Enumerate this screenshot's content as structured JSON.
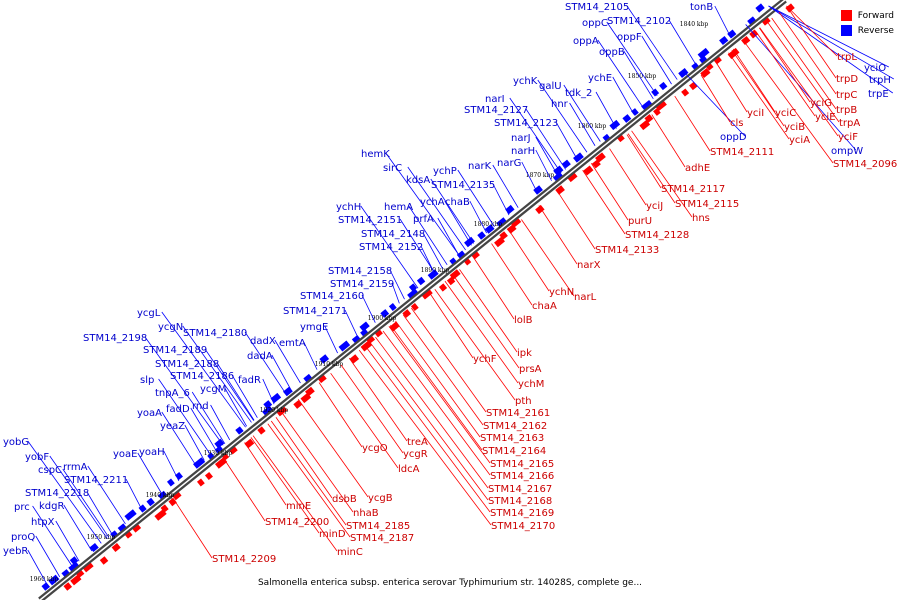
{
  "legend": {
    "forward_label": "Forward",
    "reverse_label": "Reverse",
    "forward_color": "#ff0000",
    "reverse_color": "#0000ff"
  },
  "caption": "Salmonella enterica subsp. enterica serovar Typhimurium str. 14028S, complete ge...",
  "ticks": [
    "1840 kbp",
    "1850 kbp",
    "1860 kbp",
    "1870 kbp",
    "1880 kbp",
    "1890 kbp",
    "1900 kbp",
    "1910 kbp",
    "1920 kbp",
    "1930 kbp",
    "1940 kbp",
    "1950 kbp",
    "1960 kbp"
  ],
  "forward_genes": [
    "trpL",
    "trpD",
    "trpC",
    "trpB",
    "trpA",
    "yciG",
    "yciE",
    "yciF",
    "yciB",
    "yciA",
    "yciC",
    "yciI",
    "cls",
    "STM14_2096",
    "STM14_2111",
    "adhE",
    "STM14_2117",
    "STM14_2115",
    "hns",
    "yciJ",
    "purU",
    "STM14_2128",
    "STM14_2133",
    "narX",
    "narL",
    "ychN",
    "chaA",
    "lolB",
    "ipk",
    "prsA",
    "ychF",
    "ychM",
    "pth",
    "STM14_2161",
    "STM14_2162",
    "STM14_2163",
    "STM14_2164",
    "STM14_2165",
    "STM14_2166",
    "STM14_2167",
    "STM14_2168",
    "STM14_2169",
    "STM14_2170",
    "treA",
    "ycgO",
    "ycgR",
    "ldcA",
    "ycgB",
    "dsbB",
    "nhaB",
    "STM14_2185",
    "STM14_2187",
    "minE",
    "minD",
    "minC",
    "STM14_2200",
    "STM14_2209"
  ],
  "reverse_genes": [
    "STM14_2105",
    "tonB",
    "oppC",
    "STM14_2102",
    "oppF",
    "oppA",
    "oppB",
    "yciO",
    "trpH",
    "trpE",
    "ompW",
    "oppD",
    "ychK",
    "galU",
    "tdk_2",
    "ychE",
    "narI",
    "hnr",
    "STM14_2127",
    "STM14_2123",
    "narJ",
    "narH",
    "narG",
    "hemK",
    "sirC",
    "kdsA",
    "ychP",
    "narK",
    "STM14_2135",
    "ychA",
    "chaB",
    "ychH",
    "hemA",
    "prfA",
    "STM14_2151",
    "STM14_2148",
    "STM14_2152",
    "STM14_2158",
    "STM14_2159",
    "STM14_2160",
    "STM14_2171",
    "ymgE",
    "ycgL",
    "ycgN",
    "STM14_2180",
    "STM14_2198",
    "dadX",
    "emtA",
    "dadA",
    "STM14_2189",
    "STM14_2188",
    "fadR",
    "STM14_2186",
    "slp",
    "ycgM",
    "tnpA_6",
    "rnd",
    "fadD",
    "yoaA",
    "yeaZ",
    "yoaE",
    "yoaH",
    "yobG",
    "yobF",
    "cspC",
    "rrmA",
    "STM14_2211",
    "STM14_2218",
    "kdgR",
    "prc",
    "htpX",
    "proQ",
    "yebR"
  ]
}
